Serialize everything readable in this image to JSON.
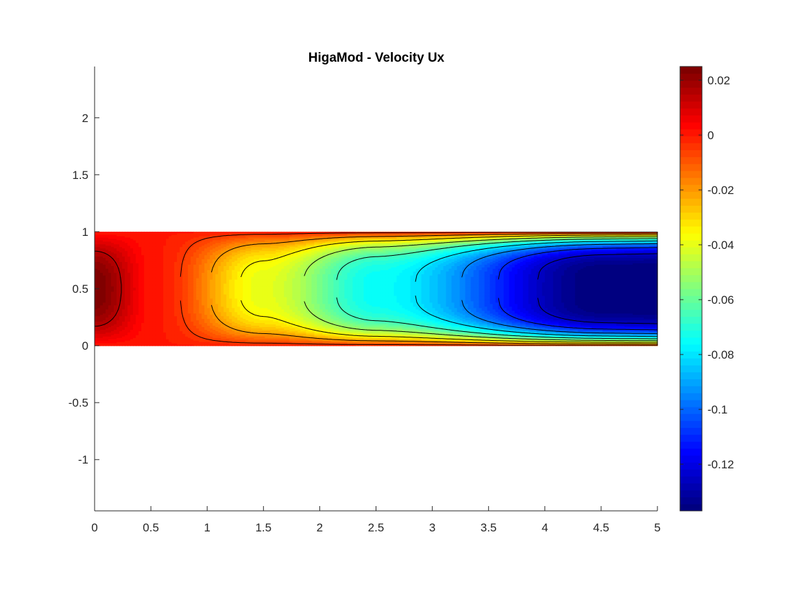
{
  "chart_data": {
    "type": "heatmap",
    "subtype": "filled-contour",
    "title": "HigaMod - Velocity Ux",
    "xlabel": "",
    "ylabel": "",
    "xlim": [
      0,
      5
    ],
    "ylim": [
      -1.45,
      2.45
    ],
    "x_ticks": [
      0,
      0.5,
      1,
      1.5,
      2,
      2.5,
      3,
      3.5,
      4,
      4.5,
      5
    ],
    "x_tick_labels": [
      "0",
      "0.5",
      "1",
      "1.5",
      "2",
      "2.5",
      "3",
      "3.5",
      "4",
      "4.5",
      "5"
    ],
    "y_ticks": [
      -1,
      -0.5,
      0,
      0.5,
      1,
      1.5,
      2
    ],
    "y_tick_labels": [
      "-1",
      "-0.5",
      "0",
      "0.5",
      "1",
      "1.5",
      "2"
    ],
    "domain": {
      "x": [
        0,
        5
      ],
      "y": [
        0,
        1
      ]
    },
    "colormap": "jet",
    "colorbar": {
      "clim": [
        -0.137,
        0.025
      ],
      "ticks": [
        0.02,
        0,
        -0.02,
        -0.04,
        -0.06,
        -0.08,
        -0.1,
        -0.12
      ],
      "tick_labels": [
        "0.02",
        "0",
        "-0.02",
        "-0.04",
        "-0.06",
        "-0.08",
        "-0.1",
        "-0.12"
      ],
      "location": "right"
    },
    "field": {
      "description_values": [
        {
          "x": 0.0,
          "y": 0.5,
          "value": 0.025
        },
        {
          "x": 0.55,
          "y": 0.5,
          "value": 0.0
        },
        {
          "x": 1.5,
          "y": 0.5,
          "value": -0.04
        },
        {
          "x": 2.5,
          "y": 0.5,
          "value": -0.075
        },
        {
          "x": 4.5,
          "y": 0.5,
          "value": -0.137
        }
      ],
      "wall_value": 0.0
    },
    "contour_levels": [
      0.015,
      -0.005,
      -0.02,
      -0.035,
      -0.05,
      -0.065,
      -0.08,
      -0.095,
      -0.11,
      -0.125
    ],
    "grid": false,
    "legend": null
  }
}
